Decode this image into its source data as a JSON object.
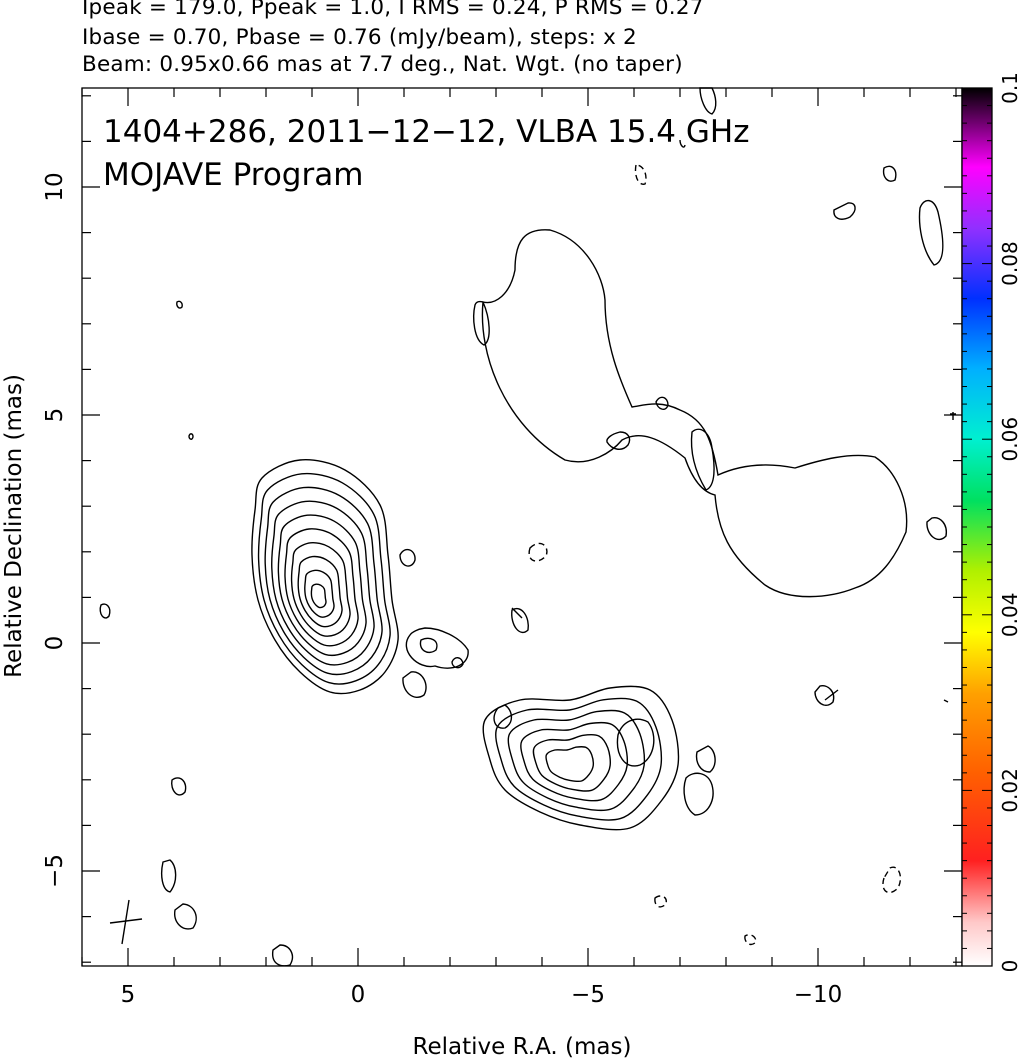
{
  "header": {
    "line1": "Ipeak = 179.0, Ppeak = 1.0, I RMS = 0.24, P RMS = 0.27",
    "line2": "Ibase = 0.70, Pbase = 0.76 (mJy/beam), steps: x 2",
    "line3": "Beam: 0.95x0.66 mas at 7.7 deg., Nat. Wgt. (no taper)"
  },
  "chart_data": {
    "type": "contour",
    "title": "1404+286, 2011−12−12, VLBA 15.4 GHz",
    "subtitle": "MOJAVE Program",
    "xlabel": "Relative R.A. (mas)",
    "ylabel": "Relative Declination (mas)",
    "xlim": [
      6,
      -13
    ],
    "ylim": [
      -7,
      12
    ],
    "x_ticks": [
      5,
      0,
      -5,
      -10
    ],
    "x_tick_labels": [
      "5",
      "0",
      "−5",
      "−10"
    ],
    "y_ticks": [
      -5,
      0,
      5,
      10
    ],
    "y_tick_labels": [
      "−5",
      "0",
      "5",
      "10"
    ],
    "colorbar": {
      "min": 0,
      "max": 0.1,
      "ticks": [
        0,
        0.02,
        0.04,
        0.06,
        0.08,
        0.1
      ],
      "tick_labels": [
        "0",
        "0.02",
        "0.04",
        "0.06",
        "0.08",
        "0.1"
      ]
    },
    "components": [
      {
        "name": "core",
        "x": 0.8,
        "y": 1.1,
        "levels": 10
      },
      {
        "name": "southern-component",
        "x": -4.6,
        "y": -2.6,
        "levels": 6
      },
      {
        "name": "northwest-diffuse-lobe",
        "x": -5.5,
        "y": 5.5,
        "levels": 1
      },
      {
        "name": "west-diffuse-lobe",
        "x": -11.0,
        "y": 2.5,
        "levels": 1
      }
    ],
    "beam": {
      "major_mas": 0.95,
      "minor_mas": 0.66,
      "pa_deg": 7.7
    },
    "colors": {
      "contour": "#000000",
      "frame": "#000000"
    }
  }
}
